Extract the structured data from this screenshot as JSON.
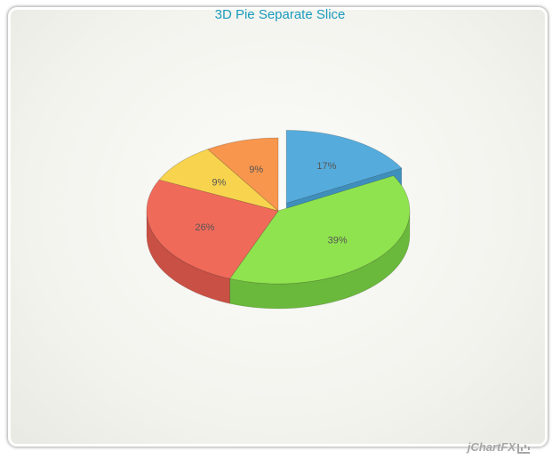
{
  "chart_data": {
    "type": "pie",
    "title": "3D Pie Separate Slice",
    "slices": [
      {
        "label": "17%",
        "value": 17,
        "color": "#55acdc",
        "side": "#3f8fbd",
        "exploded": true
      },
      {
        "label": "39%",
        "value": 39,
        "color": "#8fe34e",
        "side": "#6ab83c",
        "exploded": false
      },
      {
        "label": "26%",
        "value": 26,
        "color": "#f06a5a",
        "side": "#c85044",
        "exploded": false
      },
      {
        "label": "9%",
        "value": 9,
        "color": "#f8d44e",
        "side": "#cfae35",
        "exploded": false
      },
      {
        "label": "9%",
        "value": 9,
        "color": "#f8964e",
        "side": "#cf7a3c",
        "exploded": false
      }
    ],
    "start_angle": 0,
    "direction": "clockwise",
    "three_d": true,
    "legend": "none"
  },
  "branding": {
    "logo": "jChartFX"
  }
}
